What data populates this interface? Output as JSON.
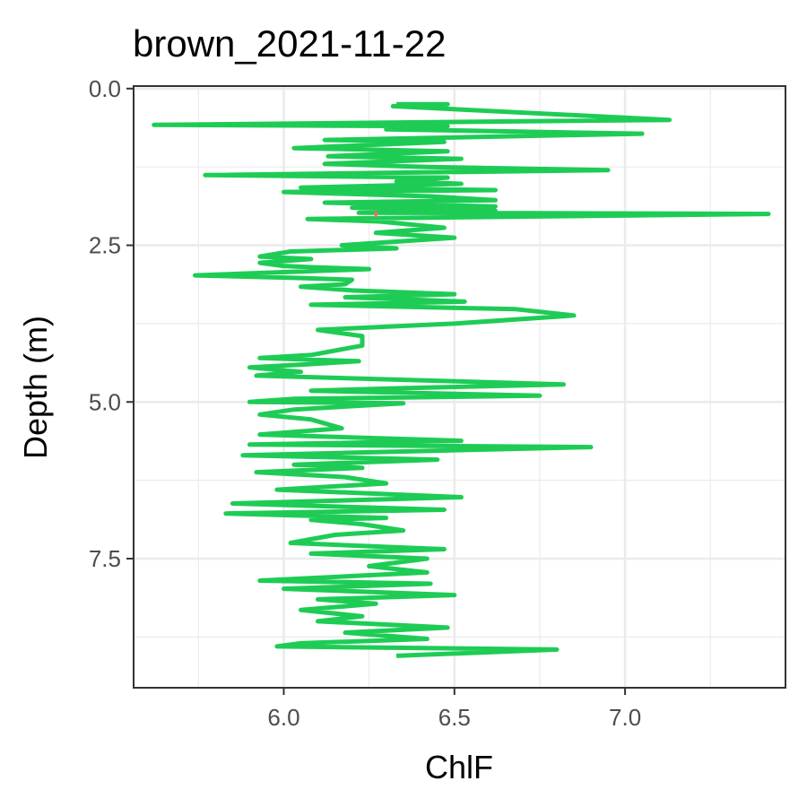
{
  "chart_data": {
    "type": "line",
    "title": "brown_2021-11-22",
    "xlabel": "ChlF",
    "ylabel": "Depth (m)",
    "xlim": [
      5.56,
      7.47
    ],
    "ylim": [
      9.56,
      -0.04
    ],
    "y_reversed": true,
    "xticks": [
      6.0,
      6.5,
      7.0
    ],
    "xtick_labels": [
      "6.0",
      "6.5",
      "7.0"
    ],
    "yticks": [
      0.0,
      2.5,
      5.0,
      7.5
    ],
    "ytick_labels": [
      "0.0",
      "2.5",
      "5.0",
      "7.5"
    ],
    "grid": true,
    "legend": "none",
    "colors": {
      "series": "#1ecc55",
      "marker": "#f06a63",
      "panel_border": "#333333",
      "grid": "#ebebeb"
    },
    "series": [
      {
        "color": "#1ecc55",
        "points": [
          [
            6.33,
            0.25
          ],
          [
            6.48,
            0.25
          ],
          [
            6.32,
            0.28
          ],
          [
            7.13,
            0.5
          ],
          [
            5.62,
            0.58
          ],
          [
            6.48,
            0.6
          ],
          [
            6.3,
            0.65
          ],
          [
            7.05,
            0.72
          ],
          [
            6.12,
            0.82
          ],
          [
            6.47,
            0.85
          ],
          [
            6.03,
            0.95
          ],
          [
            6.48,
            1.0
          ],
          [
            6.13,
            1.08
          ],
          [
            6.52,
            1.12
          ],
          [
            6.12,
            1.2
          ],
          [
            6.42,
            1.25
          ],
          [
            6.95,
            1.3
          ],
          [
            5.77,
            1.38
          ],
          [
            6.48,
            1.42
          ],
          [
            6.33,
            1.48
          ],
          [
            6.52,
            1.52
          ],
          [
            6.05,
            1.58
          ],
          [
            6.62,
            1.62
          ],
          [
            6.0,
            1.65
          ],
          [
            6.43,
            1.72
          ],
          [
            6.62,
            1.78
          ],
          [
            6.12,
            1.82
          ],
          [
            6.62,
            1.88
          ],
          [
            6.2,
            1.9
          ],
          [
            6.62,
            1.95
          ],
          [
            6.22,
            1.98
          ],
          [
            7.42,
            2.0
          ],
          [
            6.07,
            2.08
          ],
          [
            6.28,
            2.12
          ],
          [
            6.47,
            2.22
          ],
          [
            6.27,
            2.3
          ],
          [
            6.5,
            2.38
          ],
          [
            6.17,
            2.5
          ],
          [
            6.33,
            2.55
          ],
          [
            6.02,
            2.6
          ],
          [
            5.93,
            2.68
          ],
          [
            6.08,
            2.72
          ],
          [
            5.93,
            2.78
          ],
          [
            6.0,
            2.83
          ],
          [
            6.08,
            2.85
          ],
          [
            6.25,
            2.88
          ],
          [
            5.74,
            2.98
          ],
          [
            6.03,
            3.02
          ],
          [
            6.2,
            3.05
          ],
          [
            6.18,
            3.12
          ],
          [
            6.05,
            3.16
          ],
          [
            6.2,
            3.22
          ],
          [
            6.5,
            3.28
          ],
          [
            6.18,
            3.33
          ],
          [
            6.53,
            3.4
          ],
          [
            6.08,
            3.45
          ],
          [
            6.68,
            3.52
          ],
          [
            6.85,
            3.62
          ],
          [
            6.5,
            3.75
          ],
          [
            6.1,
            3.85
          ],
          [
            6.23,
            3.95
          ],
          [
            6.23,
            4.1
          ],
          [
            6.08,
            4.25
          ],
          [
            5.93,
            4.3
          ],
          [
            6.22,
            4.35
          ],
          [
            6.07,
            4.4
          ],
          [
            5.9,
            4.45
          ],
          [
            6.05,
            4.52
          ],
          [
            5.92,
            4.58
          ],
          [
            6.82,
            4.72
          ],
          [
            6.35,
            4.78
          ],
          [
            6.08,
            4.82
          ],
          [
            6.75,
            4.9
          ],
          [
            6.03,
            4.95
          ],
          [
            5.9,
            5.0
          ],
          [
            6.35,
            5.02
          ],
          [
            6.03,
            5.12
          ],
          [
            5.93,
            5.2
          ],
          [
            6.08,
            5.28
          ],
          [
            6.17,
            5.42
          ],
          [
            5.93,
            5.52
          ],
          [
            6.52,
            5.62
          ],
          [
            5.9,
            5.68
          ],
          [
            6.9,
            5.72
          ],
          [
            5.88,
            5.85
          ],
          [
            6.45,
            5.92
          ],
          [
            6.03,
            6.0
          ],
          [
            6.23,
            6.05
          ],
          [
            5.92,
            6.12
          ],
          [
            6.18,
            6.2
          ],
          [
            6.3,
            6.3
          ],
          [
            5.98,
            6.4
          ],
          [
            6.52,
            6.52
          ],
          [
            5.85,
            6.62
          ],
          [
            6.47,
            6.72
          ],
          [
            5.83,
            6.78
          ],
          [
            6.3,
            6.85
          ],
          [
            6.08,
            6.88
          ],
          [
            6.23,
            6.95
          ],
          [
            6.35,
            7.05
          ],
          [
            6.15,
            7.12
          ],
          [
            6.02,
            7.25
          ],
          [
            6.47,
            7.35
          ],
          [
            6.08,
            7.42
          ],
          [
            6.42,
            7.5
          ],
          [
            6.25,
            7.62
          ],
          [
            6.42,
            7.72
          ],
          [
            5.93,
            7.85
          ],
          [
            6.43,
            7.9
          ],
          [
            6.0,
            7.98
          ],
          [
            6.5,
            8.08
          ],
          [
            6.1,
            8.15
          ],
          [
            6.27,
            8.22
          ],
          [
            6.05,
            8.32
          ],
          [
            6.23,
            8.42
          ],
          [
            6.1,
            8.5
          ],
          [
            6.48,
            8.6
          ],
          [
            6.18,
            8.68
          ],
          [
            6.42,
            8.78
          ],
          [
            6.05,
            8.85
          ],
          [
            5.98,
            8.9
          ],
          [
            6.8,
            8.95
          ],
          [
            6.33,
            9.05
          ]
        ]
      }
    ],
    "marker_segment": {
      "color": "#f06a63",
      "x": 6.27,
      "y": [
        1.95,
        2.05
      ]
    }
  }
}
